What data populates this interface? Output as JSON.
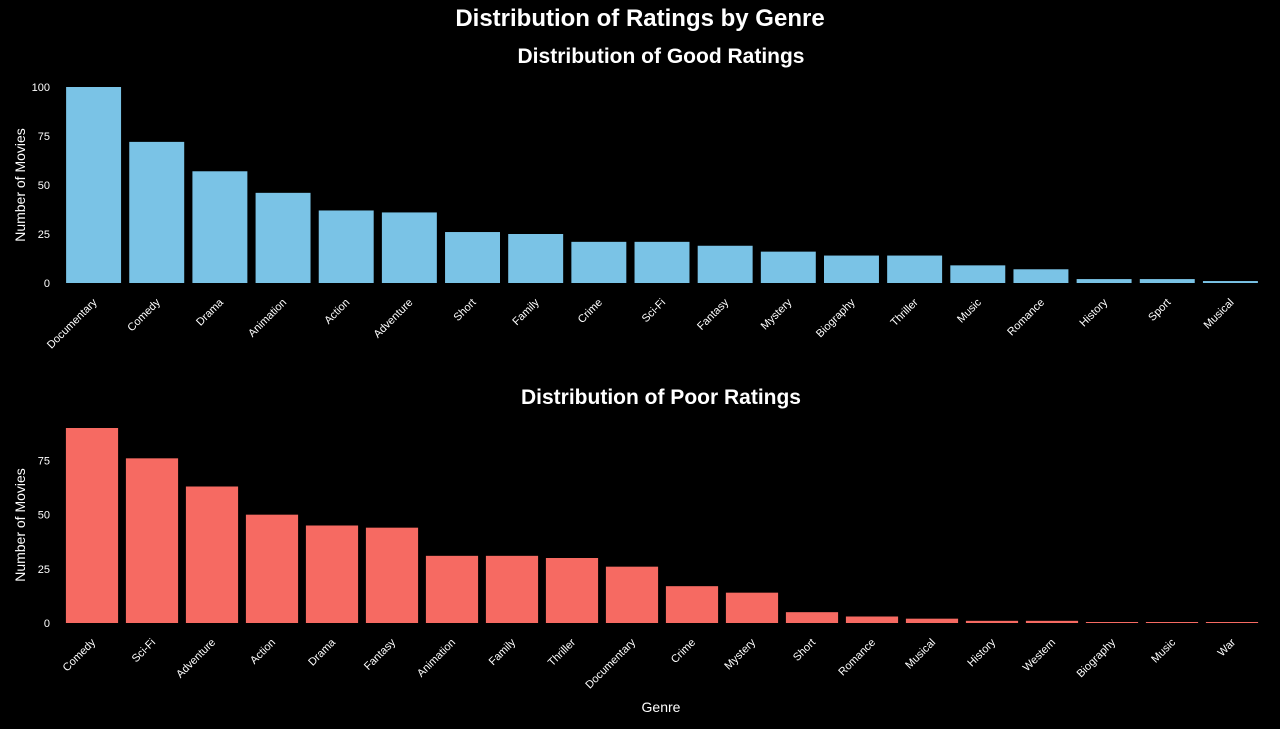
{
  "figure": {
    "title": "Distribution of Ratings by Genre",
    "background": "#000000",
    "text_color": "#ffffff"
  },
  "chart_data": [
    {
      "type": "bar",
      "title": "Distribution of Good Ratings",
      "xlabel": "",
      "ylabel": "Number of Movies",
      "ylim": [
        0,
        100
      ],
      "yticks": [
        "0",
        "25",
        "50",
        "75",
        "100"
      ],
      "color": "#7ac3e6",
      "grid": false,
      "categories": [
        "Documentary",
        "Comedy",
        "Drama",
        "Animation",
        "Action",
        "Adventure",
        "Short",
        "Family",
        "Crime",
        "Sci-Fi",
        "Fantasy",
        "Mystery",
        "Biography",
        "Thriller",
        "Music",
        "Romance",
        "History",
        "Sport",
        "Musical"
      ],
      "values": [
        100,
        72,
        57,
        46,
        37,
        36,
        26,
        25,
        21,
        21,
        19,
        16,
        14,
        14,
        9,
        7,
        2,
        2,
        1
      ]
    },
    {
      "type": "bar",
      "title": "Distribution of Poor Ratings",
      "xlabel": "Genre",
      "ylabel": "Number of Movies",
      "ylim": [
        0,
        90
      ],
      "yticks": [
        "0",
        "25",
        "50",
        "75"
      ],
      "color": "#f66a62",
      "grid": false,
      "categories": [
        "Comedy",
        "Sci-Fi",
        "Adventure",
        "Action",
        "Drama",
        "Fantasy",
        "Animation",
        "Family",
        "Thriller",
        "Documentary",
        "Crime",
        "Mystery",
        "Short",
        "Romance",
        "Musical",
        "History",
        "Western",
        "Biography",
        "Music",
        "War"
      ],
      "values": [
        90,
        76,
        63,
        50,
        45,
        44,
        31,
        31,
        30,
        26,
        17,
        14,
        5,
        3,
        2,
        1,
        1,
        0.3,
        0.3,
        0.3
      ]
    }
  ]
}
